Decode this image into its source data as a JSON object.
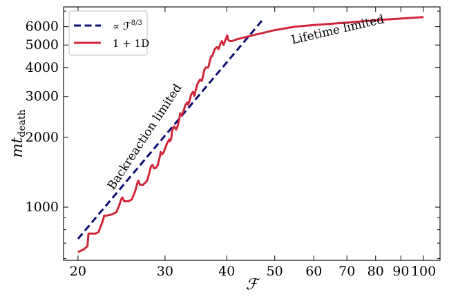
{
  "chart_data": {
    "type": "line",
    "xscale": "log",
    "yscale": "log",
    "xlim": [
      18.7,
      108
    ],
    "ylim": [
      590,
      7300
    ],
    "xlabel": "ℱ",
    "ylabel": "mt_death",
    "ylabel_main": "mt",
    "ylabel_sub": "death",
    "xticks": [
      20,
      30,
      40,
      50,
      60,
      70,
      80,
      90,
      100
    ],
    "xtick_labels": [
      "20",
      "30",
      "40",
      "50",
      "60",
      "70",
      "80",
      "90",
      "100"
    ],
    "yticks": [
      1000,
      2000,
      3000,
      4000,
      5000,
      6000
    ],
    "ytick_labels": [
      "1000",
      "2000",
      "3000",
      "4000",
      "5000",
      "6000"
    ],
    "grid": false,
    "legend_placement": "top-left",
    "series": [
      {
        "name": "∝ ℱ^{8/3}",
        "legend_main": "∝ ℱ",
        "legend_sup": "8/3",
        "style": "dashed",
        "color": "#0d0d73",
        "x": [
          20,
          47.5
        ],
        "y": [
          730,
          6500
        ]
      },
      {
        "name": "1 + 1D",
        "legend_main": "1 + 1D",
        "style": "solid",
        "color": "#d0263a",
        "x": [
          20.0,
          20.6,
          20.9,
          21.0,
          21.7,
          22.0,
          22.4,
          22.6,
          22.9,
          23.4,
          23.9,
          24.2,
          24.5,
          24.6,
          24.8,
          25.3,
          25.7,
          26.1,
          26.4,
          26.5,
          26.7,
          27.1,
          27.6,
          27.9,
          28.1,
          28.3,
          28.5,
          28.8,
          29.0,
          29.3,
          29.4,
          29.6,
          29.8,
          30.0,
          30.3,
          30.6,
          30.7,
          30.9,
          31.0,
          31.3,
          31.6,
          31.8,
          32.0,
          32.2,
          32.4,
          32.7,
          33.0,
          33.3,
          33.4,
          33.6,
          33.9,
          34.2,
          34.4,
          34.6,
          34.9,
          35.3,
          35.6,
          35.8,
          36.0,
          36.3,
          36.7,
          37.0,
          37.2,
          37.4,
          37.8,
          38.2,
          38.5,
          38.8,
          39.1,
          39.4,
          39.8,
          40.1,
          40.2,
          40.5,
          41.0,
          42.0,
          43.5,
          45.0,
          47.5,
          50.0,
          55.0,
          60.0,
          70.0,
          80.0,
          90.0,
          100.0
        ],
        "y": [
          640,
          660,
          680,
          770,
          770,
          780,
          860,
          920,
          920,
          930,
          950,
          1010,
          1090,
          1100,
          1060,
          1060,
          1080,
          1170,
          1280,
          1300,
          1250,
          1250,
          1300,
          1410,
          1500,
          1520,
          1470,
          1480,
          1520,
          1660,
          1730,
          1690,
          1720,
          1790,
          1890,
          1960,
          1920,
          1990,
          2140,
          2230,
          2160,
          2230,
          2350,
          2540,
          2480,
          2600,
          2760,
          2830,
          2770,
          2850,
          3070,
          3140,
          3020,
          3190,
          3400,
          3550,
          3500,
          3650,
          3900,
          4000,
          4000,
          4300,
          4470,
          4480,
          4800,
          4900,
          4800,
          5050,
          5200,
          5000,
          5300,
          5500,
          5300,
          5200,
          5200,
          5300,
          5400,
          5500,
          5650,
          5800,
          6000,
          6100,
          6250,
          6400,
          6500,
          6600
        ]
      }
    ],
    "annotations": [
      {
        "text": "Backreaction limited",
        "x": 23.6,
        "y": 1180,
        "rotation": -56.5
      },
      {
        "text": "Lifetime limited",
        "x": 54.3,
        "y": 5050,
        "rotation": -13
      }
    ]
  }
}
